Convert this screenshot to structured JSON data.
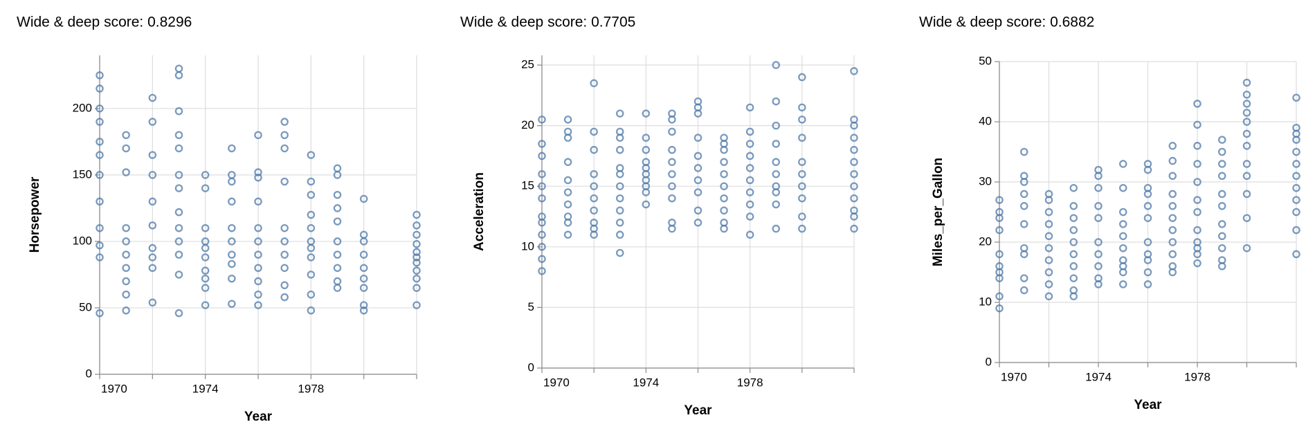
{
  "chart_data": [
    {
      "type": "scatter",
      "title": "Wide & deep score: 0.8296",
      "x_label": "Year",
      "y_label": "Horsepower",
      "color": "#4c78a8",
      "grid": true,
      "xlim": [
        1970,
        1982
      ],
      "xticks": [
        1970,
        1974,
        1978
      ],
      "xgrid": [
        1970,
        1972,
        1974,
        1976,
        1978,
        1980,
        1982
      ],
      "ylim": [
        0,
        240
      ],
      "yticks": [
        0,
        50,
        100,
        150,
        200
      ],
      "x": [
        1970,
        1970,
        1970,
        1970,
        1970,
        1970,
        1970,
        1970,
        1970,
        1970,
        1970,
        1970,
        1971,
        1971,
        1971,
        1971,
        1971,
        1971,
        1971,
        1971,
        1971,
        1971,
        1972,
        1972,
        1972,
        1972,
        1972,
        1972,
        1972,
        1972,
        1972,
        1972,
        1973,
        1973,
        1973,
        1973,
        1973,
        1973,
        1973,
        1973,
        1973,
        1973,
        1973,
        1973,
        1973,
        1974,
        1974,
        1974,
        1974,
        1974,
        1974,
        1974,
        1974,
        1974,
        1974,
        1975,
        1975,
        1975,
        1975,
        1975,
        1975,
        1975,
        1975,
        1975,
        1975,
        1976,
        1976,
        1976,
        1976,
        1976,
        1976,
        1976,
        1976,
        1976,
        1976,
        1976,
        1977,
        1977,
        1977,
        1977,
        1977,
        1977,
        1977,
        1977,
        1977,
        1977,
        1978,
        1978,
        1978,
        1978,
        1978,
        1978,
        1978,
        1978,
        1978,
        1978,
        1978,
        1979,
        1979,
        1979,
        1979,
        1979,
        1979,
        1979,
        1979,
        1979,
        1979,
        1980,
        1980,
        1980,
        1980,
        1980,
        1980,
        1980,
        1980,
        1980,
        1982,
        1982,
        1982,
        1982,
        1982,
        1982,
        1982,
        1982,
        1982,
        1982,
        1982
      ],
      "values": [
        225,
        215,
        200,
        190,
        175,
        165,
        150,
        130,
        110,
        97,
        88,
        46,
        180,
        170,
        152,
        110,
        100,
        90,
        80,
        70,
        60,
        48,
        208,
        190,
        165,
        150,
        130,
        112,
        95,
        88,
        80,
        54,
        230,
        225,
        198,
        180,
        170,
        150,
        140,
        122,
        110,
        100,
        90,
        75,
        46,
        150,
        140,
        110,
        100,
        95,
        88,
        78,
        72,
        65,
        52,
        170,
        150,
        145,
        130,
        110,
        100,
        90,
        83,
        72,
        53,
        180,
        152,
        148,
        130,
        110,
        100,
        90,
        80,
        70,
        60,
        52,
        190,
        180,
        170,
        145,
        110,
        100,
        90,
        80,
        67,
        58,
        165,
        145,
        135,
        120,
        110,
        100,
        95,
        88,
        75,
        60,
        48,
        155,
        150,
        135,
        125,
        115,
        100,
        90,
        80,
        70,
        65,
        132,
        105,
        100,
        90,
        80,
        72,
        65,
        52,
        48,
        120,
        112,
        105,
        98,
        92,
        88,
        84,
        78,
        72,
        65,
        52
      ]
    },
    {
      "type": "scatter",
      "title": "Wide & deep score: 0.7705",
      "x_label": "Year",
      "y_label": "Acceleration",
      "color": "#4c78a8",
      "grid": true,
      "xlim": [
        1970,
        1982
      ],
      "xticks": [
        1970,
        1974,
        1978
      ],
      "xgrid": [
        1970,
        1972,
        1974,
        1976,
        1978,
        1980,
        1982
      ],
      "ylim": [
        0,
        25.8
      ],
      "yticks": [
        0,
        5,
        10,
        15,
        20,
        25
      ],
      "x": [
        1970,
        1970,
        1970,
        1970,
        1970,
        1970,
        1970,
        1970,
        1970,
        1970,
        1970,
        1970,
        1971,
        1971,
        1971,
        1971,
        1971,
        1971,
        1971,
        1971,
        1971,
        1971,
        1972,
        1972,
        1972,
        1972,
        1972,
        1972,
        1972,
        1972,
        1972,
        1972,
        1973,
        1973,
        1973,
        1973,
        1973,
        1973,
        1973,
        1973,
        1973,
        1973,
        1973,
        1973,
        1974,
        1974,
        1974,
        1974,
        1974,
        1974,
        1974,
        1974,
        1974,
        1974,
        1975,
        1975,
        1975,
        1975,
        1975,
        1975,
        1975,
        1975,
        1975,
        1975,
        1976,
        1976,
        1976,
        1976,
        1976,
        1976,
        1976,
        1976,
        1976,
        1976,
        1977,
        1977,
        1977,
        1977,
        1977,
        1977,
        1977,
        1977,
        1977,
        1977,
        1978,
        1978,
        1978,
        1978,
        1978,
        1978,
        1978,
        1978,
        1978,
        1978,
        1979,
        1979,
        1979,
        1979,
        1979,
        1979,
        1979,
        1979,
        1979,
        1979,
        1980,
        1980,
        1980,
        1980,
        1980,
        1980,
        1980,
        1980,
        1980,
        1980,
        1982,
        1982,
        1982,
        1982,
        1982,
        1982,
        1982,
        1982,
        1982,
        1982,
        1982,
        1982
      ],
      "values": [
        20.5,
        18.5,
        17.5,
        16,
        15,
        14,
        12.5,
        12,
        11,
        10,
        9,
        8,
        20.5,
        19.5,
        19,
        17,
        15.5,
        14.5,
        13.5,
        12.5,
        12,
        11,
        23.5,
        19.5,
        18,
        16,
        15,
        14,
        13,
        12,
        11.5,
        11,
        21,
        19.5,
        19,
        18,
        16.5,
        16,
        15,
        14,
        13,
        12,
        11,
        9.5,
        21,
        19,
        18,
        17,
        16.5,
        16,
        15.5,
        15,
        14.5,
        13.5,
        21,
        20.5,
        19.5,
        18,
        17,
        16,
        15,
        14,
        12,
        11.5,
        22,
        21.5,
        21,
        19,
        17.5,
        16.5,
        15.5,
        14.5,
        13,
        12,
        19,
        18.5,
        18,
        17,
        16,
        15,
        14,
        13,
        12,
        11.5,
        21.5,
        19.5,
        18.5,
        17.5,
        16.5,
        15.5,
        14.5,
        13.5,
        12.5,
        11,
        25,
        22,
        20,
        18.5,
        17,
        16,
        15,
        14.5,
        13.5,
        11.5,
        24,
        21.5,
        20.5,
        19,
        17,
        16,
        15,
        14,
        12.5,
        11.5,
        24.5,
        20.5,
        20,
        19,
        18,
        17,
        16,
        15,
        14,
        13,
        12.5,
        11.5
      ]
    },
    {
      "type": "scatter",
      "title": "Wide & deep score: 0.6882",
      "x_label": "Year",
      "y_label": "Miles_per_Gallon",
      "color": "#4c78a8",
      "grid": true,
      "xlim": [
        1970,
        1982
      ],
      "xticks": [
        1970,
        1974,
        1978
      ],
      "xgrid": [
        1970,
        1972,
        1974,
        1976,
        1978,
        1980,
        1982
      ],
      "ylim": [
        0,
        50
      ],
      "yticks": [
        0,
        10,
        20,
        30,
        40,
        50
      ],
      "x": [
        1970,
        1970,
        1970,
        1970,
        1970,
        1970,
        1970,
        1970,
        1970,
        1970,
        1971,
        1971,
        1971,
        1971,
        1971,
        1971,
        1971,
        1971,
        1971,
        1971,
        1972,
        1972,
        1972,
        1972,
        1972,
        1972,
        1972,
        1972,
        1972,
        1972,
        1973,
        1973,
        1973,
        1973,
        1973,
        1973,
        1973,
        1973,
        1973,
        1973,
        1974,
        1974,
        1974,
        1974,
        1974,
        1974,
        1974,
        1974,
        1974,
        1974,
        1975,
        1975,
        1975,
        1975,
        1975,
        1975,
        1975,
        1975,
        1975,
        1975,
        1976,
        1976,
        1976,
        1976,
        1976,
        1976,
        1976,
        1976,
        1976,
        1976,
        1976,
        1977,
        1977,
        1977,
        1977,
        1977,
        1977,
        1977,
        1977,
        1977,
        1977,
        1977,
        1978,
        1978,
        1978,
        1978,
        1978,
        1978,
        1978,
        1978,
        1978,
        1978,
        1978,
        1978,
        1979,
        1979,
        1979,
        1979,
        1979,
        1979,
        1979,
        1979,
        1979,
        1979,
        1979,
        1980,
        1980,
        1980,
        1980,
        1980,
        1980,
        1980,
        1980,
        1980,
        1980,
        1980,
        1980,
        1982,
        1982,
        1982,
        1982,
        1982,
        1982,
        1982,
        1982,
        1982,
        1982,
        1982,
        1982
      ],
      "values": [
        27,
        25,
        24,
        22,
        18,
        16,
        15,
        14,
        11,
        9,
        35,
        31,
        30,
        28,
        26,
        23,
        19,
        18,
        14,
        12,
        28,
        27,
        25,
        23,
        21,
        19,
        17,
        15,
        13,
        11,
        29,
        26,
        24,
        22,
        20,
        18,
        16,
        14,
        12,
        11,
        32,
        31,
        29,
        26,
        24,
        20,
        18,
        16,
        14,
        13,
        33,
        29,
        25,
        23,
        21,
        19,
        17,
        16,
        15,
        13,
        33,
        32,
        29,
        28,
        26,
        24,
        20,
        18,
        17,
        15,
        13,
        36,
        33.5,
        31,
        28,
        26,
        24,
        22,
        20,
        18,
        16,
        15,
        43,
        39.5,
        36,
        33,
        30,
        27,
        25,
        22,
        20,
        19,
        18,
        16.5,
        37,
        35,
        33,
        31,
        28,
        26,
        23,
        21,
        19,
        17,
        16,
        46.5,
        44.5,
        43,
        41.5,
        40,
        38,
        36,
        33,
        31,
        28,
        24,
        19,
        44,
        39,
        38,
        37,
        35,
        33,
        31,
        29,
        27,
        25,
        22,
        18
      ]
    }
  ]
}
